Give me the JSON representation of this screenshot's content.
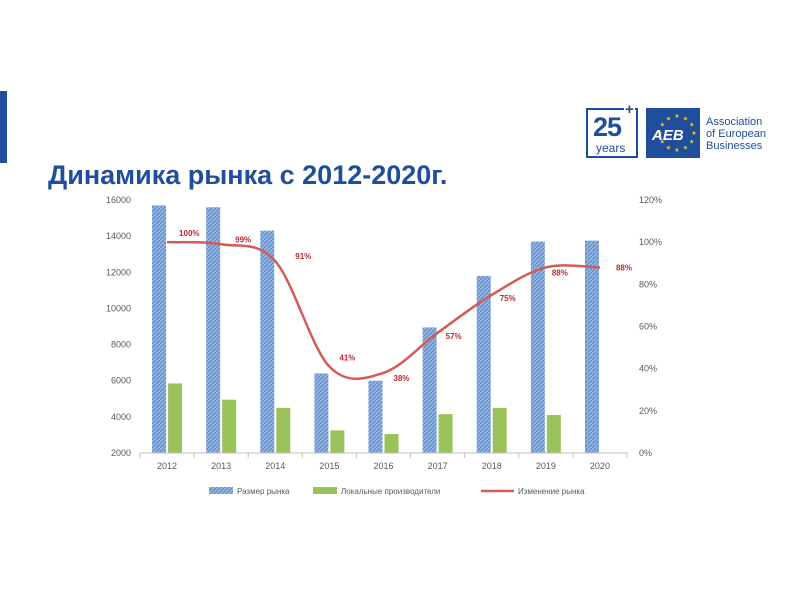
{
  "header": {
    "title": "Динамика рынка с 2012-2020г.",
    "logo_years_number": "25",
    "logo_years_plus": "+",
    "logo_years_word": "years",
    "logo_aeb_abbr": "AEB",
    "org_name_lines": [
      "Association",
      "of European",
      "Businesses"
    ]
  },
  "colors": {
    "brand": "#1f4e9c",
    "market_size_bar": "#6f9bd6",
    "local_producers_bar": "#9bc25a",
    "market_change_line": "#d35b58",
    "data_label": "#c0282c",
    "axis_text": "#595959"
  },
  "chart_data": {
    "type": "bar",
    "title": "",
    "categories": [
      "2012",
      "2013",
      "2014",
      "2015",
      "2016",
      "2017",
      "2018",
      "2019",
      "2020"
    ],
    "ylim": [
      2000,
      16000
    ],
    "y_ticks": [
      "16000",
      "14000",
      "12000",
      "10000",
      "8000",
      "6000",
      "4000",
      "2000"
    ],
    "y2lim": [
      0,
      120
    ],
    "y2_ticks": [
      "120%",
      "100%",
      "80%",
      "60%",
      "40%",
      "20%",
      "0%"
    ],
    "grid": false,
    "legend_position": "bottom",
    "series": [
      {
        "name": "Размер рынка",
        "type": "bar",
        "axis": "left",
        "values": [
          15700,
          15600,
          14300,
          6400,
          6000,
          8950,
          11800,
          13700,
          13750
        ]
      },
      {
        "name": "Локальные производители",
        "type": "bar",
        "axis": "left",
        "values": [
          5850,
          4950,
          4500,
          3250,
          3050,
          4150,
          4500,
          4100,
          null
        ]
      },
      {
        "name": "Изменение рынка",
        "type": "line",
        "axis": "right",
        "smooth": true,
        "values": [
          100,
          99,
          91,
          41,
          38,
          57,
          75,
          88,
          88
        ],
        "labels": [
          "100%",
          "99%",
          "91%",
          "41%",
          "38%",
          "57%",
          "75%",
          "88%",
          "88%"
        ]
      }
    ]
  }
}
